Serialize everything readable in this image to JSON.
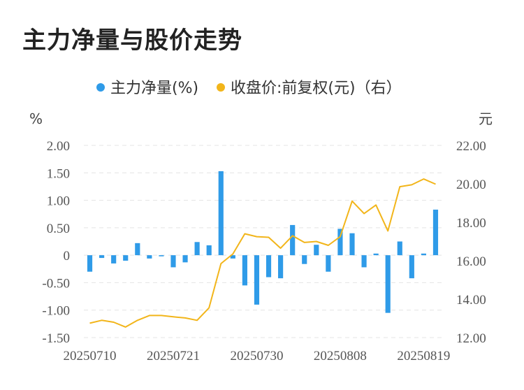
{
  "title": "主力净量与股价走势",
  "chart_data": {
    "type": "bar+line",
    "legend": {
      "bar_label": "主力净量(%)",
      "line_label": "收盘价:前复权(元)（右）",
      "bar_color": "#2f9be8",
      "line_color": "#f2b51a"
    },
    "left_axis": {
      "unit": "%",
      "ylim": [
        -1.5,
        2.0
      ],
      "ticks": [
        "2.00",
        "1.50",
        "1.00",
        "0.50",
        "0",
        "-0.50",
        "-1.00",
        "-1.50"
      ]
    },
    "right_axis": {
      "unit": "元",
      "ylim": [
        12.0,
        22.0
      ],
      "ticks": [
        "22.00",
        "20.00",
        "18.00",
        "16.00",
        "14.00",
        "12.00"
      ]
    },
    "x_tick_labels": [
      "20250710",
      "20250721",
      "20250730",
      "20250808",
      "20250819"
    ],
    "x_tick_index": [
      0,
      7,
      14,
      21,
      28
    ],
    "grid": "horizontal-dashed",
    "bars": [
      -0.3,
      -0.05,
      -0.15,
      -0.1,
      0.22,
      -0.06,
      -0.02,
      -0.22,
      -0.13,
      0.24,
      0.18,
      1.53,
      -0.06,
      -0.55,
      -0.9,
      -0.4,
      -0.42,
      0.55,
      -0.16,
      0.19,
      -0.3,
      0.48,
      0.4,
      -0.22,
      0.03,
      -1.05,
      0.25,
      -0.42,
      0.03,
      0.83
    ],
    "close": [
      12.75,
      12.9,
      12.8,
      12.55,
      12.9,
      13.15,
      13.15,
      13.08,
      13.02,
      12.9,
      13.55,
      15.85,
      16.35,
      17.4,
      17.25,
      17.22,
      16.65,
      17.3,
      16.95,
      17.0,
      16.8,
      17.25,
      19.1,
      18.45,
      18.9,
      17.55,
      19.85,
      19.95,
      20.25,
      19.98
    ]
  }
}
